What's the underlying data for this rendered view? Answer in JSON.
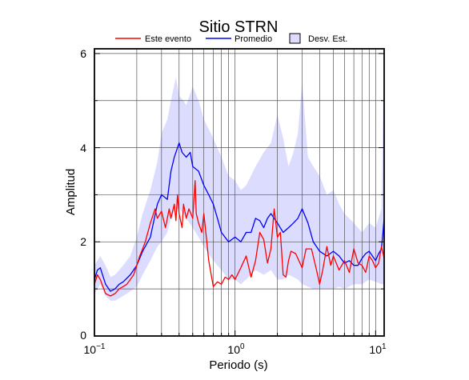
{
  "chart_data": {
    "type": "line",
    "title": "Sitio STRN",
    "xlabel": "Periodo (s)",
    "ylabel": "Amplitud",
    "xscale": "log",
    "xlim": [
      0.1,
      11.5
    ],
    "ylim": [
      0,
      6.1
    ],
    "grid": true,
    "legend_position": "top",
    "x_tick_labels": [
      {
        "base": "10",
        "exp": "−1"
      },
      {
        "base": "10",
        "exp": "0"
      },
      {
        "base": "10",
        "exp": "1"
      }
    ],
    "y_tick_labels": [
      "0",
      "2",
      "4",
      "6"
    ],
    "legend": {
      "event_label": "Este evento",
      "mean_label": "Promedio",
      "std_label": "Desv. Est."
    },
    "colors": {
      "event": "#ff0000",
      "mean": "#0000ff",
      "std_fill": "#dcdcff",
      "grid": "#555555"
    },
    "series": [
      {
        "name": "Este evento",
        "x": [
          0.1,
          0.105,
          0.11,
          0.12,
          0.13,
          0.14,
          0.15,
          0.16,
          0.17,
          0.18,
          0.19,
          0.2,
          0.21,
          0.22,
          0.23,
          0.25,
          0.27,
          0.28,
          0.3,
          0.32,
          0.34,
          0.35,
          0.37,
          0.38,
          0.39,
          0.4,
          0.42,
          0.43,
          0.45,
          0.47,
          0.5,
          0.52,
          0.53,
          0.55,
          0.58,
          0.6,
          0.62,
          0.65,
          0.7,
          0.75,
          0.8,
          0.85,
          0.9,
          0.95,
          1.0,
          1.1,
          1.2,
          1.3,
          1.4,
          1.5,
          1.6,
          1.7,
          1.8,
          1.9,
          2.0,
          2.1,
          2.2,
          2.3,
          2.4,
          2.5,
          2.7,
          3.0,
          3.2,
          3.5,
          3.8,
          4.0,
          4.2,
          4.5,
          4.8,
          5.0,
          5.5,
          6.0,
          6.5,
          7.0,
          7.5,
          8.0,
          8.5,
          9.0,
          9.5,
          10.0,
          10.5,
          11.0,
          11.5
        ],
        "values": [
          1.1,
          1.3,
          1.2,
          0.9,
          0.85,
          0.9,
          1.0,
          1.05,
          1.1,
          1.2,
          1.3,
          1.5,
          1.7,
          1.85,
          2.0,
          2.4,
          2.7,
          2.5,
          2.65,
          2.3,
          2.7,
          2.5,
          2.8,
          2.45,
          3.0,
          2.6,
          2.3,
          2.8,
          2.5,
          2.7,
          2.5,
          3.3,
          2.6,
          2.4,
          2.2,
          2.6,
          2.2,
          1.6,
          1.05,
          1.15,
          1.1,
          1.25,
          1.2,
          1.3,
          1.2,
          1.45,
          1.7,
          1.25,
          1.6,
          2.2,
          2.05,
          1.55,
          1.85,
          2.7,
          2.1,
          2.2,
          1.3,
          1.25,
          1.6,
          1.8,
          1.75,
          1.45,
          1.85,
          1.85,
          1.4,
          1.1,
          1.4,
          1.9,
          1.5,
          1.7,
          1.4,
          1.6,
          1.35,
          1.85,
          1.55,
          1.5,
          1.35,
          1.7,
          1.6,
          1.45,
          1.55,
          1.9,
          1.65
        ]
      },
      {
        "name": "Promedio",
        "x": [
          0.1,
          0.105,
          0.11,
          0.12,
          0.13,
          0.14,
          0.15,
          0.16,
          0.18,
          0.2,
          0.22,
          0.25,
          0.28,
          0.3,
          0.33,
          0.35,
          0.37,
          0.39,
          0.4,
          0.42,
          0.45,
          0.48,
          0.5,
          0.55,
          0.6,
          0.65,
          0.7,
          0.75,
          0.8,
          0.9,
          1.0,
          1.1,
          1.2,
          1.3,
          1.4,
          1.5,
          1.6,
          1.7,
          1.8,
          2.0,
          2.2,
          2.4,
          2.6,
          2.8,
          3.0,
          3.3,
          3.6,
          4.0,
          4.5,
          5.0,
          5.5,
          6.0,
          6.5,
          7.0,
          7.5,
          8.0,
          8.5,
          9.0,
          10.0,
          10.5,
          11.0,
          11.5
        ],
        "values": [
          1.2,
          1.4,
          1.45,
          1.1,
          0.95,
          1.0,
          1.1,
          1.15,
          1.3,
          1.5,
          1.8,
          2.1,
          2.8,
          3.0,
          2.9,
          3.5,
          3.8,
          4.0,
          4.1,
          3.9,
          3.8,
          3.9,
          3.6,
          3.5,
          3.2,
          3.0,
          2.8,
          2.5,
          2.2,
          2.0,
          2.1,
          2.0,
          2.2,
          2.2,
          2.5,
          2.45,
          2.3,
          2.5,
          2.6,
          2.4,
          2.2,
          2.3,
          2.4,
          2.5,
          2.7,
          2.4,
          2.0,
          1.8,
          1.7,
          1.8,
          1.7,
          1.55,
          1.6,
          1.5,
          1.5,
          1.65,
          1.75,
          1.8,
          1.6,
          1.75,
          1.85,
          2.5
        ]
      },
      {
        "name": "Desv. Est.",
        "x": [
          0.1,
          0.11,
          0.12,
          0.13,
          0.14,
          0.15,
          0.16,
          0.18,
          0.2,
          0.22,
          0.25,
          0.28,
          0.3,
          0.33,
          0.35,
          0.38,
          0.4,
          0.43,
          0.45,
          0.5,
          0.55,
          0.6,
          0.7,
          0.8,
          0.9,
          1.0,
          1.1,
          1.2,
          1.4,
          1.6,
          1.8,
          2.0,
          2.2,
          2.4,
          2.6,
          2.8,
          3.0,
          3.3,
          3.6,
          4.0,
          4.5,
          5.0,
          5.5,
          6.0,
          7.0,
          8.0,
          9.0,
          10.0,
          11.0,
          11.5
        ],
        "upper": [
          1.5,
          1.7,
          1.5,
          1.25,
          1.3,
          1.4,
          1.5,
          1.7,
          2.1,
          2.6,
          3.1,
          3.7,
          4.3,
          4.6,
          5.0,
          5.5,
          5.1,
          5.0,
          4.9,
          5.3,
          5.0,
          4.6,
          4.2,
          3.8,
          3.4,
          3.3,
          3.1,
          3.2,
          3.6,
          3.9,
          4.1,
          4.7,
          4.2,
          3.6,
          3.9,
          4.3,
          5.4,
          3.8,
          3.6,
          3.4,
          3.0,
          3.1,
          2.8,
          2.6,
          2.4,
          2.2,
          2.4,
          2.3,
          2.7,
          6.1
        ],
        "lower": [
          0.9,
          1.1,
          0.85,
          0.75,
          0.75,
          0.8,
          0.85,
          0.95,
          1.05,
          1.3,
          1.6,
          1.9,
          2.0,
          2.2,
          2.5,
          2.7,
          2.7,
          2.6,
          2.5,
          2.3,
          2.1,
          1.9,
          1.6,
          1.4,
          1.2,
          1.2,
          1.1,
          1.2,
          1.4,
          1.3,
          1.4,
          1.2,
          1.2,
          1.3,
          1.25,
          1.2,
          1.1,
          1.05,
          1.0,
          1.0,
          1.0,
          1.0,
          1.05,
          1.0,
          1.1,
          1.1,
          1.2,
          1.15,
          1.1,
          1.1
        ]
      }
    ]
  }
}
